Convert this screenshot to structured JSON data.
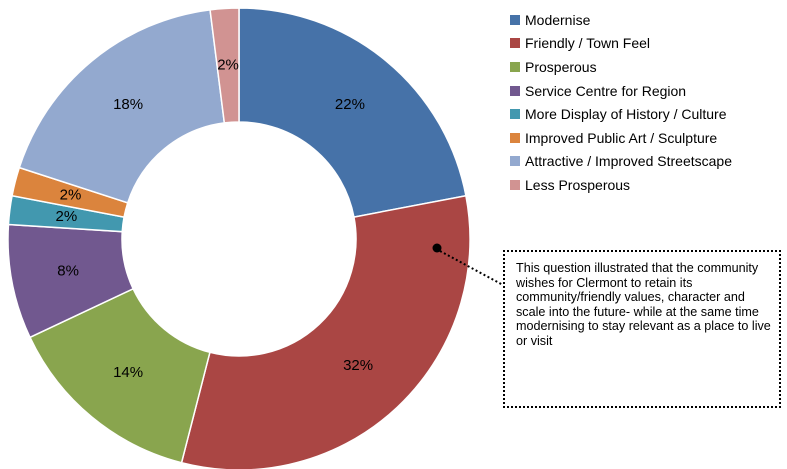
{
  "chart_data": {
    "type": "pie",
    "variant": "donut",
    "categories": [
      "Modernise",
      "Friendly / Town Feel",
      "Prosperous",
      "Service Centre for Region",
      "More Display of History / Culture",
      "Improved Public Art / Sculpture",
      "Attractive / Improved Streetscape",
      "Less Prosperous"
    ],
    "values": [
      22,
      32,
      14,
      8,
      2,
      2,
      18,
      2
    ],
    "value_labels": [
      "22%",
      "32%",
      "14%",
      "8%",
      "2%",
      "2%",
      "18%",
      "2%"
    ],
    "colors": [
      "#4672a8",
      "#aa4644",
      "#89a54e",
      "#71588f",
      "#4298af",
      "#db843d",
      "#93a9cf",
      "#d19392"
    ],
    "legend_position": "right",
    "annotation": "This question illustrated that the community wishes for Clermont to retain its community/friendly values, character and scale into the future- while at the same time modernising to stay relevant as a place to live or visit"
  }
}
